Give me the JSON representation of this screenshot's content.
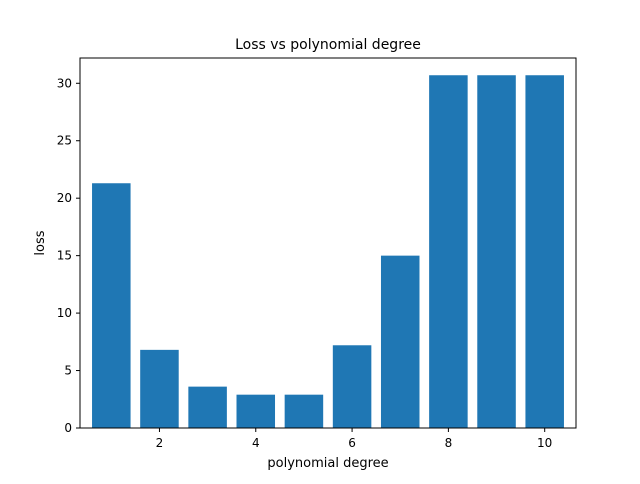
{
  "chart_data": {
    "type": "bar",
    "title": "Loss vs polynomial degree",
    "xlabel": "polynomial degree",
    "ylabel": "loss",
    "x": [
      1,
      2,
      3,
      4,
      5,
      6,
      7,
      8,
      9,
      10
    ],
    "values": [
      21.3,
      6.8,
      3.6,
      2.9,
      2.9,
      7.2,
      15.0,
      30.7,
      30.7,
      30.7
    ],
    "xticks": [
      "2",
      "4",
      "6",
      "8",
      "10"
    ],
    "xtick_values": [
      2,
      4,
      6,
      8,
      10
    ],
    "yticks": [
      "0",
      "5",
      "10",
      "15",
      "20",
      "25",
      "30"
    ],
    "ytick_values": [
      0,
      5,
      10,
      15,
      20,
      25,
      30
    ],
    "xlim": [
      0.35,
      10.65
    ],
    "ylim": [
      0,
      32.2
    ],
    "grid": false,
    "legend": "none",
    "bar_color": "#1f77b4"
  }
}
